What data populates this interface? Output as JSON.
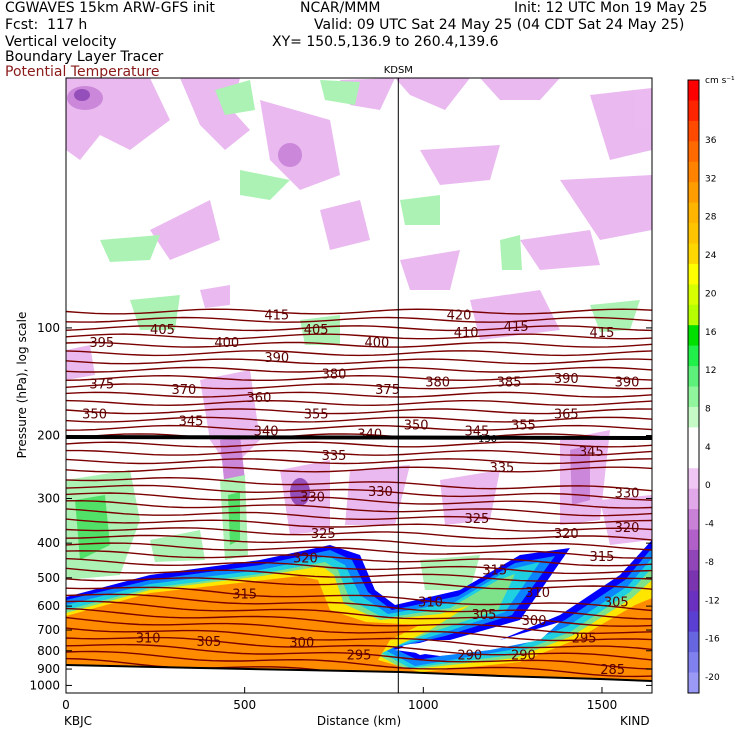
{
  "header": {
    "model": "CGWAVES 15km ARW-GFS init",
    "org": "NCAR/MMM",
    "init": "Init: 12 UTC Mon 19 May 25",
    "fcst": "Fcst:  117 h",
    "valid": "Valid: 09 UTC Sat 24 May 25 (04 CDT Sat 24 May 25)",
    "xy": "XY= 150.5,136.9 to 260.4,139.6",
    "fields": [
      "Vertical velocity",
      "Boundary Layer Tracer",
      "Potential Temperature"
    ]
  },
  "colors": {
    "theta": "#7a0000",
    "ground": "#000000",
    "tracer": "#ff8c00"
  },
  "chart_data": {
    "type": "heatmap",
    "title": "",
    "xlabel": "Distance (km)",
    "ylabel": "Pressure (hPa), log scale",
    "x_ticks": [
      0,
      500,
      1000,
      1500
    ],
    "xlim": [
      0,
      1640
    ],
    "y_ticks": [
      100,
      200,
      300,
      400,
      500,
      600,
      700,
      800,
      900,
      1000
    ],
    "y_scale": "log",
    "ylim_top_hpa": 20,
    "ylim_bottom_hpa": 1050,
    "station_marker": {
      "label": "KDSM",
      "x_km": 930
    },
    "endpoints": {
      "left": "KBJC",
      "right": "KIND"
    },
    "tropopause_label": "150",
    "theta_labels": [
      {
        "v": "415",
        "x": 590,
        "p": 93
      },
      {
        "v": "420",
        "x": 1100,
        "p": 93
      },
      {
        "v": "405",
        "x": 270,
        "p": 102
      },
      {
        "v": "405",
        "x": 700,
        "p": 102
      },
      {
        "v": "410",
        "x": 1120,
        "p": 104
      },
      {
        "v": "415",
        "x": 1260,
        "p": 100
      },
      {
        "v": "415",
        "x": 1500,
        "p": 104
      },
      {
        "v": "395",
        "x": 100,
        "p": 111
      },
      {
        "v": "400",
        "x": 450,
        "p": 111
      },
      {
        "v": "400",
        "x": 870,
        "p": 111
      },
      {
        "v": "390",
        "x": 590,
        "p": 122
      },
      {
        "v": "380",
        "x": 750,
        "p": 136
      },
      {
        "v": "380",
        "x": 1040,
        "p": 143
      },
      {
        "v": "385",
        "x": 1240,
        "p": 143
      },
      {
        "v": "390",
        "x": 1400,
        "p": 140
      },
      {
        "v": "390",
        "x": 1570,
        "p": 143
      },
      {
        "v": "375",
        "x": 100,
        "p": 145
      },
      {
        "v": "370",
        "x": 330,
        "p": 150
      },
      {
        "v": "375",
        "x": 900,
        "p": 150
      },
      {
        "v": "360",
        "x": 540,
        "p": 158
      },
      {
        "v": "350",
        "x": 80,
        "p": 176
      },
      {
        "v": "345",
        "x": 350,
        "p": 184
      },
      {
        "v": "355",
        "x": 700,
        "p": 176
      },
      {
        "v": "365",
        "x": 1400,
        "p": 176
      },
      {
        "v": "340",
        "x": 560,
        "p": 196
      },
      {
        "v": "340",
        "x": 850,
        "p": 200
      },
      {
        "v": "350",
        "x": 980,
        "p": 189
      },
      {
        "v": "345",
        "x": 1150,
        "p": 196
      },
      {
        "v": "355",
        "x": 1280,
        "p": 189
      },
      {
        "v": "345",
        "x": 1470,
        "p": 224
      },
      {
        "v": "335",
        "x": 750,
        "p": 230
      },
      {
        "v": "335",
        "x": 1220,
        "p": 248
      },
      {
        "v": "330",
        "x": 690,
        "p": 300
      },
      {
        "v": "330",
        "x": 880,
        "p": 290
      },
      {
        "v": "330",
        "x": 1570,
        "p": 292
      },
      {
        "v": "325",
        "x": 1150,
        "p": 345
      },
      {
        "v": "325",
        "x": 720,
        "p": 380
      },
      {
        "v": "320",
        "x": 1400,
        "p": 380
      },
      {
        "v": "320",
        "x": 1570,
        "p": 365
      },
      {
        "v": "320",
        "x": 670,
        "p": 445
      },
      {
        "v": "315",
        "x": 1200,
        "p": 480
      },
      {
        "v": "315",
        "x": 1500,
        "p": 440
      },
      {
        "v": "315",
        "x": 500,
        "p": 560
      },
      {
        "v": "310",
        "x": 1320,
        "p": 555
      },
      {
        "v": "310",
        "x": 1020,
        "p": 590
      },
      {
        "v": "305",
        "x": 1170,
        "p": 640
      },
      {
        "v": "305",
        "x": 1540,
        "p": 590
      },
      {
        "v": "300",
        "x": 1310,
        "p": 665
      },
      {
        "v": "310",
        "x": 230,
        "p": 745
      },
      {
        "v": "305",
        "x": 400,
        "p": 760
      },
      {
        "v": "300",
        "x": 660,
        "p": 765
      },
      {
        "v": "295",
        "x": 820,
        "p": 830
      },
      {
        "v": "295",
        "x": 1450,
        "p": 745
      },
      {
        "v": "290",
        "x": 1130,
        "p": 830
      },
      {
        "v": "290",
        "x": 1280,
        "p": 830
      },
      {
        "v": "285",
        "x": 1530,
        "p": 910
      }
    ],
    "colorbar": {
      "unit": "cm s⁻¹",
      "labels": [
        "36",
        "32",
        "28",
        "24",
        "20",
        "16",
        "12",
        "8",
        "4",
        "0",
        "-4",
        "-8",
        "-12",
        "-16",
        "-20"
      ],
      "colors": [
        "#ff0000",
        "#ff2400",
        "#ff4a00",
        "#ff6a00",
        "#ff8300",
        "#ff9d00",
        "#ffb400",
        "#ffc400",
        "#ffd700",
        "#ffff00",
        "#d8ff00",
        "#b5ff00",
        "#00e000",
        "#22f04a",
        "#5df07a",
        "#90f59c",
        "#c5fac7",
        "#ffffff",
        "#ffffff",
        "#f0c6f4",
        "#e0a8e8",
        "#c981d7",
        "#b060c8",
        "#9046b8",
        "#7a34b0",
        "#6a30c0",
        "#5b3fd2",
        "#6865e0",
        "#8080ee",
        "#9a9af6"
      ]
    }
  }
}
